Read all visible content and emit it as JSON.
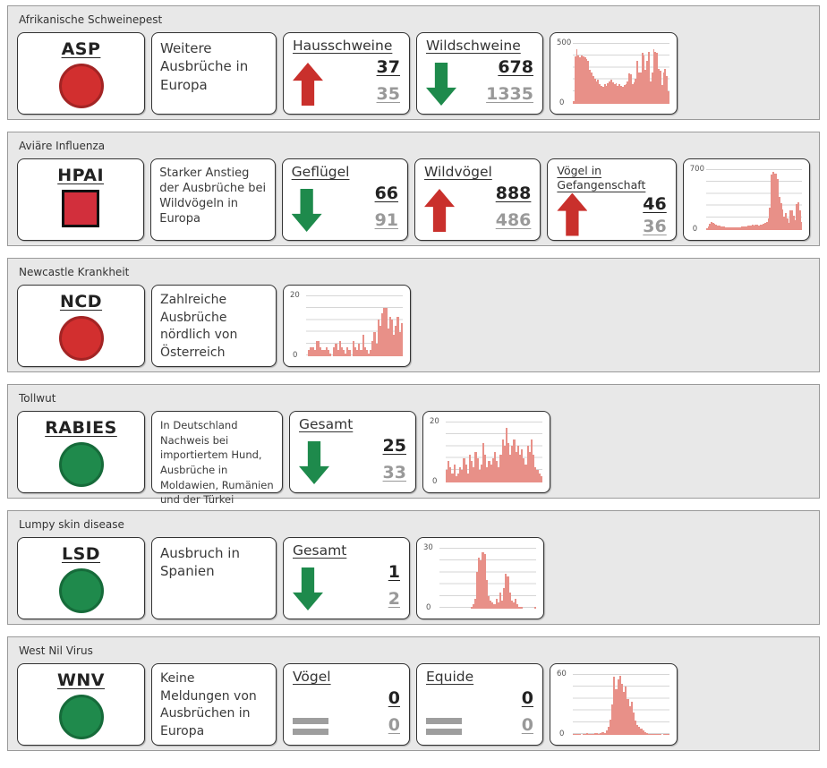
{
  "colors": {
    "bar": "#e89088",
    "section_bg": "#e8e8e8",
    "trend": {
      "up": "#c9302c",
      "down": "#1e8a4c",
      "equal": "#9e9e9e"
    },
    "indicator_red": "#d22f2f",
    "indicator_red_border": "#a32424",
    "indicator_green": "#1f8a4c",
    "indicator_green_border": "#166b3a"
  },
  "sections": [
    {
      "header": "Afrikanische Schweinepest",
      "id": {
        "label": "ASP",
        "indicator": {
          "shape": "circle",
          "color": "#d22f2f",
          "border": "#a32424"
        }
      },
      "description": "Weitere Ausbrüche in Europa",
      "metrics": [
        {
          "label": "Hausschweine",
          "trend": "up",
          "value": "37",
          "prev": "35"
        },
        {
          "label": "Wildschweine",
          "trend": "down",
          "value": "678",
          "prev": "1335"
        }
      ],
      "chart": {
        "type": "bar",
        "ymax": 500,
        "ymax_label": "500",
        "ymin_label": "0",
        "values": [
          20,
          390,
          450,
          400,
          385,
          400,
          390,
          380,
          370,
          350,
          280,
          255,
          230,
          205,
          185,
          200,
          165,
          150,
          140,
          160,
          150,
          170,
          185,
          200,
          175,
          160,
          170,
          150,
          160,
          148,
          140,
          155,
          165,
          185,
          250,
          240,
          165,
          175,
          205,
          350,
          260,
          255,
          420,
          400,
          280,
          350,
          430,
          185,
          255,
          445,
          430,
          420,
          285,
          270,
          155,
          260,
          285,
          230,
          105
        ]
      }
    },
    {
      "header": "Aviäre Influenza",
      "id": {
        "label": "HPAI",
        "indicator": {
          "shape": "square",
          "color": "#d22f3c",
          "border": "#111111"
        }
      },
      "description": "Starker Anstieg der Ausbrüche bei Wildvögeln in Europa",
      "metrics": [
        {
          "label": "Geflügel",
          "trend": "down",
          "value": "66",
          "prev": "91"
        },
        {
          "label": "Wildvögel",
          "trend": "up",
          "value": "888",
          "prev": "486"
        },
        {
          "label": "Vögel in Gefangenschaft",
          "trend": "up",
          "value": "46",
          "prev": "36"
        }
      ],
      "chart": {
        "type": "bar",
        "ymax": 700,
        "ymax_label": "700",
        "ymin_label": "0",
        "values": [
          25,
          40,
          70,
          90,
          85,
          75,
          60,
          55,
          48,
          42,
          40,
          38,
          35,
          33,
          32,
          30,
          32,
          30,
          33,
          36,
          34,
          32,
          38,
          42,
          40,
          44,
          48,
          52,
          50,
          58,
          55,
          62,
          58,
          55,
          60,
          65,
          70,
          80,
          95,
          130,
          260,
          640,
          670,
          650,
          645,
          590,
          380,
          310,
          240,
          150,
          200,
          130,
          85,
          225,
          230,
          165,
          115,
          295,
          315,
          225,
          90
        ]
      }
    },
    {
      "header": "Newcastle Krankheit",
      "id": {
        "label": "NCD",
        "indicator": {
          "shape": "circle",
          "color": "#d22f2f",
          "border": "#a32424"
        }
      },
      "description": "Zahlreiche Ausbrüche nördlich von Österreich",
      "metrics": [],
      "chart": {
        "type": "bar",
        "ymax": 20,
        "ymax_label": "20",
        "ymin_label": "0",
        "values": [
          0,
          2,
          3,
          3,
          2,
          5,
          5,
          3,
          2,
          2,
          3,
          2,
          1,
          0,
          3,
          4,
          2,
          5,
          3,
          2,
          1,
          3,
          2,
          0,
          5,
          3,
          2,
          4,
          2,
          7,
          3,
          2,
          1,
          2,
          5,
          8,
          4,
          12,
          10,
          14,
          16,
          16,
          9,
          13,
          12,
          7,
          10,
          13,
          8,
          11
        ]
      }
    },
    {
      "header": "Tollwut",
      "id": {
        "label": "RABIES",
        "indicator": {
          "shape": "circle",
          "color": "#1f8a4c",
          "border": "#166b3a"
        }
      },
      "description": "In Deutschland Nachweis bei importiertem Hund, Ausbrüche in Moldawien, Rumänien und der Türkei",
      "metrics": [
        {
          "label": "Gesamt",
          "trend": "down",
          "value": "25",
          "prev": "33"
        }
      ],
      "chart": {
        "type": "bar",
        "ymax": 20,
        "ymax_label": "20",
        "ymin_label": "0",
        "values": [
          4,
          7,
          5,
          3,
          6,
          2,
          3,
          5,
          4,
          8,
          6,
          3,
          9,
          7,
          5,
          10,
          8,
          4,
          6,
          13,
          9,
          5,
          7,
          6,
          8,
          10,
          7,
          5,
          9,
          14,
          12,
          18,
          13,
          9,
          12,
          14,
          10,
          12,
          9,
          11,
          8,
          6,
          12,
          10,
          14,
          9,
          5,
          4,
          3,
          2
        ]
      }
    },
    {
      "header": "Lumpy skin disease",
      "id": {
        "label": "LSD",
        "indicator": {
          "shape": "circle",
          "color": "#1f8a4c",
          "border": "#166b3a"
        }
      },
      "description": "Ausbruch in Spanien",
      "metrics": [
        {
          "label": "Gesamt",
          "trend": "down",
          "value": "1",
          "prev": "2"
        }
      ],
      "chart": {
        "type": "bar",
        "ymax": 30,
        "ymax_label": "30",
        "ymin_label": "0",
        "values": [
          0,
          0,
          0,
          0,
          0,
          0,
          0,
          0,
          0,
          0,
          0,
          0,
          0,
          0,
          0,
          0,
          1,
          2,
          5,
          18,
          25,
          24,
          28,
          27,
          14,
          6,
          4,
          3,
          2,
          5,
          3,
          8,
          4,
          10,
          17,
          16,
          8,
          4,
          3,
          5,
          2,
          1,
          1,
          0,
          0,
          0,
          0,
          0,
          0,
          1
        ]
      }
    },
    {
      "header": "West Nil Virus",
      "id": {
        "label": "WNV",
        "indicator": {
          "shape": "circle",
          "color": "#1f8a4c",
          "border": "#166b3a"
        }
      },
      "description": "Keine Meldungen von Ausbrüchen in Europa",
      "metrics": [
        {
          "label": "Vögel",
          "trend": "equal",
          "value": "0",
          "prev": "0"
        },
        {
          "label": "Equide",
          "trend": "equal",
          "value": "0",
          "prev": "0"
        }
      ],
      "chart": {
        "type": "bar",
        "ymax": 60,
        "ymax_label": "60",
        "ymin_label": "0",
        "values": [
          1,
          1,
          1,
          1,
          0,
          1,
          1,
          2,
          1,
          1,
          1,
          2,
          2,
          1,
          2,
          3,
          2,
          4,
          8,
          15,
          30,
          57,
          45,
          55,
          58,
          50,
          42,
          48,
          35,
          28,
          33,
          22,
          14,
          10,
          8,
          6,
          4,
          3,
          2,
          1,
          1,
          1,
          1,
          1,
          1,
          1,
          0,
          1,
          1,
          1
        ]
      }
    }
  ]
}
